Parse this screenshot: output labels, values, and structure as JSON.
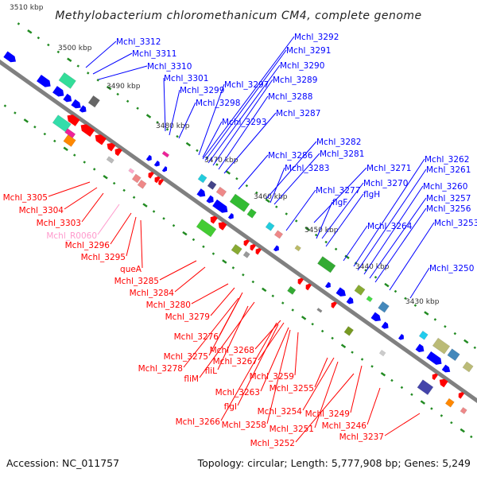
{
  "title": "Methylobacterium chloromethanicum CM4, complete genome",
  "footer": {
    "accession": "Accession: NC_011757",
    "summary": "Topology: circular; Length: 5,777,908 bp; Genes: 5,249"
  },
  "colors": {
    "forward": "#0000ff",
    "reverse": "#ff0000",
    "rna": "#ff99cc",
    "axis": "#808080",
    "ticks": "#228b22"
  },
  "kbp_ticks": [
    "3510 kbp",
    "3500 kbp",
    "3490 kbp",
    "3480 kbp",
    "3470 kbp",
    "3460 kbp",
    "3450 kbp",
    "3440 kbp",
    "3430 kbp"
  ],
  "forward_labels": [
    "Mchl_3312",
    "Mchl_3311",
    "Mchl_3310",
    "Mchl_3301",
    "Mchl_3299",
    "Mchl_3298",
    "Mchl_3297",
    "Mchl_3293",
    "Mchl_3292",
    "Mchl_3291",
    "Mchl_3290",
    "Mchl_3289",
    "Mchl_3288",
    "Mchl_3287",
    "Mchl_3286",
    "Mchl_3282",
    "Mchl_3281",
    "Mchl_3283",
    "Mchl_3271",
    "Mchl_3277",
    "Mchl_3270",
    "flgF",
    "flgH",
    "Mchl_3264",
    "Mchl_3262",
    "Mchl_3261",
    "Mchl_3260",
    "Mchl_3257",
    "Mchl_3256",
    "Mchl_3253",
    "Mchl_3250"
  ],
  "reverse_labels": [
    "Mchl_3305",
    "Mchl_3304",
    "Mchl_3303",
    "Mchl_R0060",
    "Mchl_3296",
    "Mchl_3295",
    "queA",
    "Mchl_3285",
    "Mchl_3284",
    "Mchl_3280",
    "Mchl_3279",
    "Mchl_3276",
    "Mchl_3268",
    "Mchl_3275",
    "Mchl_3267",
    "Mchl_3278",
    "fliL",
    "fliM",
    "Mchl_3259",
    "Mchl_3263",
    "Mchl_3255",
    "flgI",
    "Mchl_3254",
    "Mchl_3249",
    "Mchl_3266",
    "Mchl_3258",
    "Mchl_3251",
    "Mchl_3246",
    "Mchl_3252",
    "Mchl_3237"
  ]
}
